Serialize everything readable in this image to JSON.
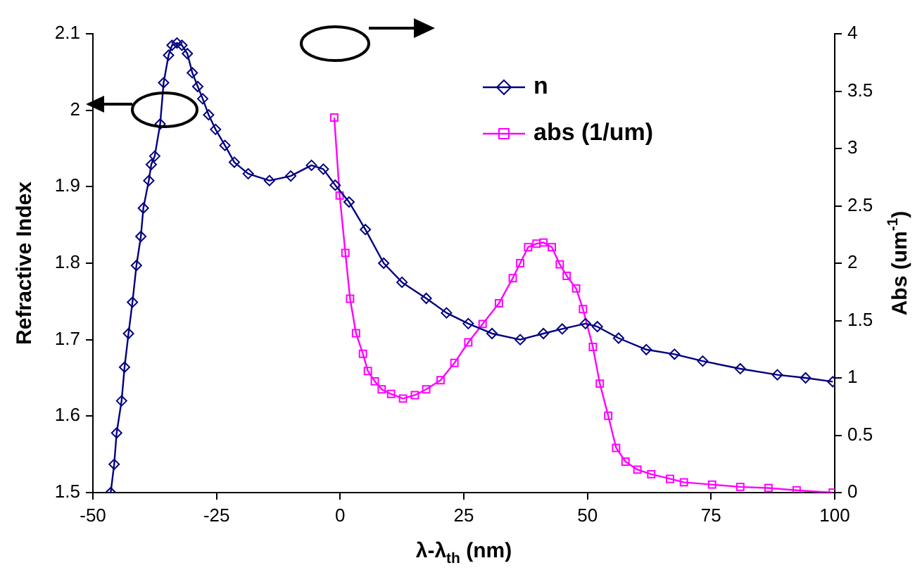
{
  "chart_data": {
    "type": "line",
    "xlabel": "λ-λ$_{th}$ (nm)",
    "ylabel": "Refractive Index",
    "y2label": "Abs (um$^{-1}$)",
    "xlim": [
      -50,
      100
    ],
    "xticks": [
      -50,
      -25,
      0,
      25,
      50,
      75,
      100
    ],
    "ylim": [
      1.5,
      2.1
    ],
    "yticks": [
      1.5,
      1.6,
      1.7,
      1.8,
      1.9,
      2,
      2.1
    ],
    "y2lim": [
      0,
      4
    ],
    "y2ticks": [
      0,
      0.5,
      1,
      1.5,
      2,
      2.5,
      3,
      3.5,
      4
    ],
    "grid": false,
    "legend": "top right",
    "series": [
      {
        "name": "n",
        "color": "#000080",
        "marker": "diamond",
        "x": [
          -46.4,
          -45.7,
          -45.2,
          -44.2,
          -43.6,
          -42.8,
          -42.0,
          -41.2,
          -40.3,
          -39.8,
          -38.7,
          -38.2,
          -37.5,
          -36.4,
          -35.7,
          -34.7,
          -34.0,
          -33.0,
          -32.0,
          -30.9,
          -29.9,
          -28.8,
          -27.8,
          -26.6,
          -25.2,
          -23.3,
          -21.4,
          -18.6,
          -14.3,
          -10.0,
          -5.8,
          -3.4,
          -1.0,
          1.8,
          5.1,
          8.8,
          12.5,
          17.4,
          21.5,
          25.9,
          30.7,
          36.4,
          41.1,
          44.9,
          49.6,
          52.0,
          56.3,
          61.9,
          67.6,
          73.3,
          80.9,
          88.4,
          94.1,
          99.6
        ],
        "values": [
          1.5,
          1.537,
          1.578,
          1.62,
          1.664,
          1.708,
          1.749,
          1.797,
          1.835,
          1.872,
          1.908,
          1.929,
          1.94,
          1.982,
          2.036,
          2.072,
          2.085,
          2.088,
          2.085,
          2.074,
          2.049,
          2.031,
          2.015,
          1.994,
          1.975,
          1.954,
          1.932,
          1.917,
          1.908,
          1.914,
          1.928,
          1.923,
          1.902,
          1.88,
          1.844,
          1.8,
          1.775,
          1.754,
          1.735,
          1.721,
          1.708,
          1.7,
          1.708,
          1.714,
          1.721,
          1.717,
          1.702,
          1.687,
          1.681,
          1.672,
          1.662,
          1.654,
          1.65,
          1.645
        ]
      },
      {
        "name": "abs (1/um)",
        "color": "#ff00ff",
        "marker": "square",
        "axis": "y2",
        "x": [
          -1.2,
          -0.1,
          1.05,
          2.0,
          3.2,
          4.6,
          5.6,
          7.0,
          8.4,
          10.3,
          12.7,
          15.1,
          17.4,
          20.3,
          23.1,
          25.9,
          28.8,
          32.1,
          34.9,
          36.4,
          38.0,
          39.7,
          41.1,
          42.8,
          44.4,
          45.8,
          47.7,
          49.1,
          51.1,
          52.5,
          54.2,
          55.8,
          57.7,
          60.1,
          62.9,
          66.7,
          69.5,
          75.2,
          80.9,
          86.6,
          92.3,
          99.6
        ],
        "values": [
          3.27,
          2.59,
          2.09,
          1.69,
          1.39,
          1.21,
          1.06,
          0.97,
          0.9,
          0.86,
          0.82,
          0.85,
          0.9,
          0.98,
          1.13,
          1.31,
          1.47,
          1.65,
          1.87,
          2.0,
          2.14,
          2.17,
          2.18,
          2.14,
          1.99,
          1.89,
          1.78,
          1.6,
          1.27,
          0.95,
          0.67,
          0.39,
          0.27,
          0.2,
          0.16,
          0.12,
          0.09,
          0.07,
          0.05,
          0.04,
          0.02,
          0.0
        ]
      }
    ]
  }
}
